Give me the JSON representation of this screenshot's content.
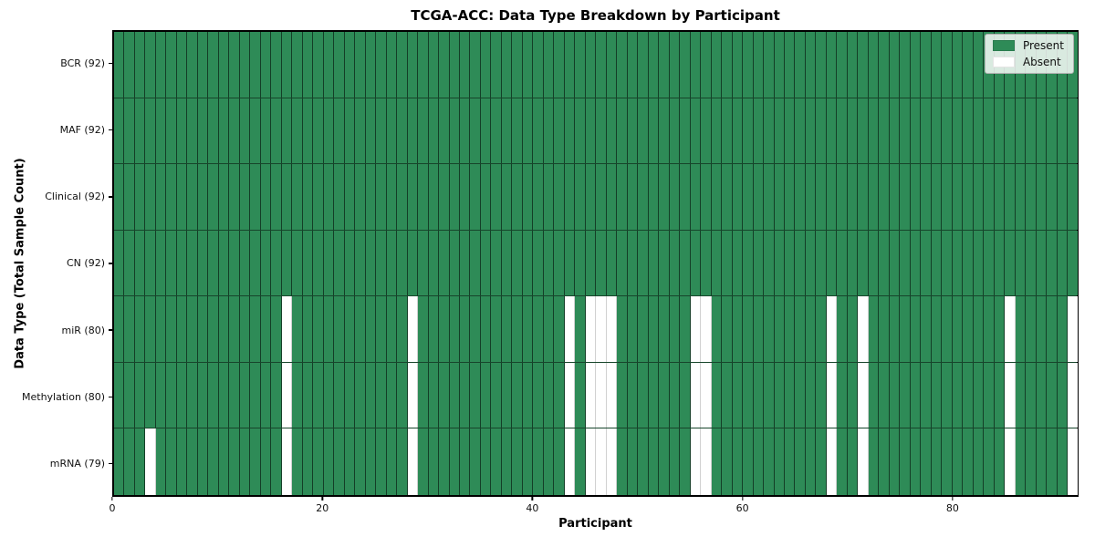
{
  "chart_data": {
    "type": "heatmap",
    "title": "TCGA-ACC: Data Type Breakdown by Participant",
    "xlabel": "Participant",
    "ylabel": "Data Type (Total Sample Count)",
    "n_participants": 92,
    "x_ticks": [
      0,
      20,
      40,
      60,
      80
    ],
    "grid": "cell-edges",
    "legend_position": "upper right",
    "rows": [
      {
        "name": "BCR",
        "label": "BCR (92)",
        "total": 92,
        "absent": []
      },
      {
        "name": "MAF",
        "label": "MAF (92)",
        "total": 92,
        "absent": []
      },
      {
        "name": "Clinical",
        "label": "Clinical (92)",
        "total": 92,
        "absent": []
      },
      {
        "name": "CN",
        "label": "CN (92)",
        "total": 92,
        "absent": []
      },
      {
        "name": "miR",
        "label": "miR (80)",
        "total": 80,
        "absent": [
          16,
          28,
          43,
          45,
          46,
          47,
          55,
          56,
          68,
          71,
          85,
          91
        ]
      },
      {
        "name": "Methylation",
        "label": "Methylation (80)",
        "total": 80,
        "absent": [
          16,
          28,
          43,
          45,
          46,
          47,
          55,
          56,
          68,
          71,
          85,
          91
        ]
      },
      {
        "name": "mRNA",
        "label": "mRNA (79)",
        "total": 79,
        "absent": [
          3,
          16,
          28,
          43,
          45,
          46,
          47,
          55,
          56,
          68,
          71,
          85,
          91
        ]
      }
    ],
    "legend": [
      {
        "id": "present",
        "label": "Present",
        "color": "#2E8B57"
      },
      {
        "id": "absent",
        "label": "Absent",
        "color": "#FFFFFF"
      }
    ],
    "colors": {
      "present": "#2E8B57",
      "absent": "#FFFFFF",
      "cell_edge": "rgba(0,0,0,0.55)",
      "row_separator": "rgba(0,0,0,0.50)",
      "spine": "#000000",
      "background": "#FFFFFF"
    }
  }
}
